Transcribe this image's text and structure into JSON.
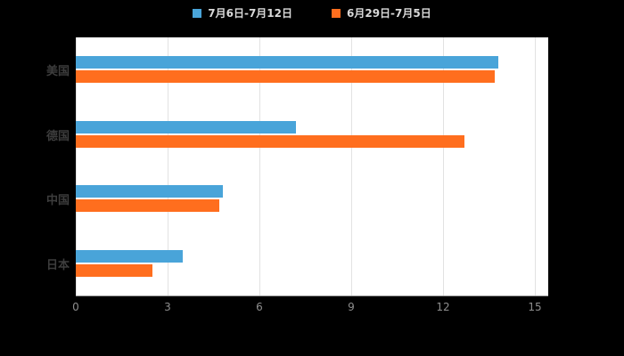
{
  "legend": {
    "series1": "7月6日-7月12日",
    "series2": "6月29日-7月5日"
  },
  "colors": {
    "series1": "#49a4d9",
    "series2": "#ff6e1e",
    "background": "#000000",
    "plot_background": "#ffffff",
    "gridline": "#e2e2e2",
    "axis_line": "#9a9a9a",
    "tick_text": "#8e8e8e",
    "category_text": "#3d3d3d",
    "legend_text": "#d9d9d9"
  },
  "chart_data": {
    "type": "bar",
    "orientation": "horizontal",
    "title": "",
    "xlabel": "",
    "ylabel": "",
    "categories": [
      "美国",
      "德国",
      "中国",
      "日本"
    ],
    "series": [
      {
        "name": "7月6日-7月12日",
        "color": "#49a4d9",
        "values": [
          13.8,
          7.2,
          4.8,
          3.5
        ]
      },
      {
        "name": "6月29日-7月5日",
        "color": "#ff6e1e",
        "values": [
          13.7,
          12.7,
          4.7,
          2.5
        ]
      }
    ],
    "xlim": [
      0,
      15
    ],
    "xticks": [
      0,
      3,
      6,
      9,
      12,
      15
    ],
    "grid": true,
    "legend_position": "top"
  }
}
